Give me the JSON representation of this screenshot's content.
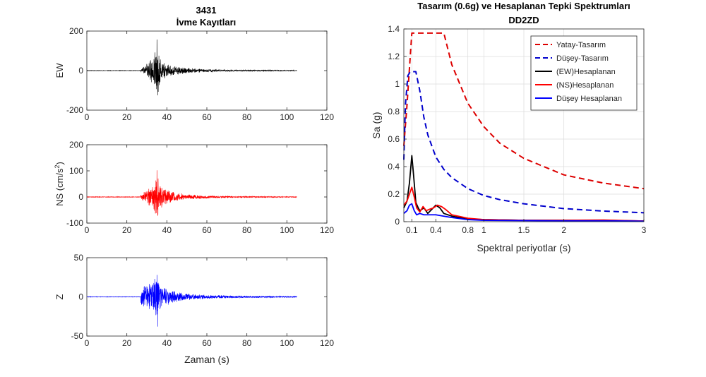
{
  "figure": {
    "left_title_line1": "3431",
    "left_title_line2": "İvme Kayıtları",
    "right_title_line1": "Tasarım (0.6g) ve Hesaplanan Tepki Spektrumları",
    "right_title_line2": "DD2ZD"
  },
  "chart_data": [
    {
      "id": "ew",
      "type": "line",
      "ylabel": "EW",
      "color": "#000000",
      "xlim": [
        0,
        120
      ],
      "ylim": [
        -200,
        200
      ],
      "xticks": [
        0,
        20,
        40,
        60,
        80,
        100,
        120
      ],
      "yticks": [
        -200,
        0,
        200
      ],
      "record_range": [
        0,
        105
      ],
      "strong_motion_start": 27,
      "peak_time": 35,
      "peak_positive": 157,
      "peak_negative": -125,
      "envelope": [
        [
          27,
          12
        ],
        [
          30,
          35
        ],
        [
          33,
          75
        ],
        [
          35,
          150
        ],
        [
          37,
          60
        ],
        [
          40,
          38
        ],
        [
          45,
          22
        ],
        [
          55,
          10
        ],
        [
          70,
          5
        ],
        [
          105,
          2
        ]
      ]
    },
    {
      "id": "ns",
      "type": "line",
      "ylabel": "NS (cm/s²)",
      "color": "#ff0000",
      "xlim": [
        0,
        120
      ],
      "ylim": [
        -100,
        200
      ],
      "xticks": [
        0,
        20,
        40,
        60,
        80,
        100,
        120
      ],
      "yticks": [
        -100,
        0,
        100,
        200
      ],
      "record_range": [
        0,
        105
      ],
      "strong_motion_start": 27,
      "peak_time": 35,
      "peak_positive": 102,
      "peak_negative": -72,
      "envelope": [
        [
          27,
          12
        ],
        [
          30,
          28
        ],
        [
          33,
          55
        ],
        [
          35,
          100
        ],
        [
          37,
          45
        ],
        [
          40,
          30
        ],
        [
          45,
          18
        ],
        [
          55,
          8
        ],
        [
          70,
          4
        ],
        [
          105,
          1.5
        ]
      ]
    },
    {
      "id": "z",
      "type": "line",
      "ylabel": "Z",
      "xlabel": "Zaman (s)",
      "color": "#0000ff",
      "xlim": [
        0,
        120
      ],
      "ylim": [
        -50,
        50
      ],
      "xticks": [
        0,
        20,
        40,
        60,
        80,
        100,
        120
      ],
      "yticks": [
        -50,
        0,
        50
      ],
      "record_range": [
        0,
        105
      ],
      "strong_motion_start": 27,
      "peak_time": 35,
      "peak_positive": 28,
      "peak_negative": -38,
      "envelope": [
        [
          27,
          14
        ],
        [
          30,
          18
        ],
        [
          33,
          20
        ],
        [
          35,
          30
        ],
        [
          37,
          16
        ],
        [
          40,
          12
        ],
        [
          45,
          7
        ],
        [
          55,
          3.5
        ],
        [
          70,
          2
        ],
        [
          105,
          0.8
        ]
      ]
    },
    {
      "id": "spectrum",
      "type": "line",
      "xlabel": "Spektral periyotlar (s)",
      "ylabel": "Sa (g)",
      "xlim": [
        0,
        3
      ],
      "ylim": [
        0,
        1.4
      ],
      "xticks": [
        0.1,
        0.4,
        0.8,
        1,
        1.5,
        2,
        3
      ],
      "xtick_labels": [
        "0.1",
        "0.4",
        "0.8",
        "1",
        "1.5",
        "2",
        "3"
      ],
      "yticks": [
        0,
        0.2,
        0.4,
        0.6,
        0.8,
        1,
        1.2,
        1.4
      ],
      "ytick_labels": [
        "0",
        "0.2",
        "0.4",
        "0.6",
        "0.8",
        "1",
        "1.2",
        "1.4"
      ],
      "legend_position": "top-right",
      "series": [
        {
          "name": "Yatay-Tasarım",
          "color": "#dd0000",
          "dashed": true,
          "x": [
            0,
            0.04,
            0.08,
            0.1,
            0.2,
            0.35,
            0.5,
            0.6,
            0.8,
            1.0,
            1.2,
            1.5,
            2.0,
            2.5,
            3.0
          ],
          "y": [
            0.55,
            0.85,
            1.2,
            1.37,
            1.37,
            1.37,
            1.37,
            1.14,
            0.86,
            0.69,
            0.57,
            0.46,
            0.34,
            0.28,
            0.24
          ]
        },
        {
          "name": "Düşey-Tasarım",
          "color": "#0000cc",
          "dashed": true,
          "x": [
            0,
            0.02,
            0.05,
            0.08,
            0.1,
            0.15,
            0.2,
            0.25,
            0.3,
            0.4,
            0.5,
            0.6,
            0.8,
            1.0,
            1.2,
            1.5,
            2.0,
            2.5,
            3.0
          ],
          "y": [
            0.45,
            0.85,
            1.06,
            1.09,
            1.09,
            1.09,
            0.95,
            0.76,
            0.63,
            0.47,
            0.38,
            0.32,
            0.24,
            0.19,
            0.16,
            0.13,
            0.095,
            0.077,
            0.065
          ]
        },
        {
          "name": "(EW)Hesaplanan",
          "color": "#000000",
          "dashed": false,
          "x": [
            0,
            0.04,
            0.07,
            0.1,
            0.12,
            0.15,
            0.18,
            0.2,
            0.25,
            0.3,
            0.35,
            0.4,
            0.45,
            0.5,
            0.6,
            0.8,
            1.0,
            1.5,
            2.0,
            2.5,
            3.0
          ],
          "y": [
            0.1,
            0.15,
            0.28,
            0.48,
            0.35,
            0.14,
            0.1,
            0.08,
            0.1,
            0.06,
            0.09,
            0.12,
            0.1,
            0.06,
            0.04,
            0.02,
            0.015,
            0.01,
            0.01,
            0.01,
            0.005
          ]
        },
        {
          "name": "(NS)Hesaplanan",
          "color": "#ff0000",
          "dashed": false,
          "x": [
            0,
            0.04,
            0.07,
            0.1,
            0.13,
            0.16,
            0.2,
            0.24,
            0.28,
            0.32,
            0.37,
            0.42,
            0.47,
            0.52,
            0.6,
            0.8,
            1.0,
            1.5,
            2.0,
            2.5,
            3.0
          ],
          "y": [
            0.12,
            0.15,
            0.2,
            0.25,
            0.18,
            0.1,
            0.07,
            0.11,
            0.08,
            0.09,
            0.1,
            0.12,
            0.11,
            0.09,
            0.05,
            0.025,
            0.015,
            0.01,
            0.01,
            0.012,
            0.005
          ]
        },
        {
          "name": "Düşey Hesaplanan",
          "color": "#0000ff",
          "dashed": false,
          "x": [
            0,
            0.04,
            0.07,
            0.1,
            0.13,
            0.16,
            0.2,
            0.25,
            0.3,
            0.4,
            0.5,
            0.6,
            0.8,
            1.0,
            1.5,
            2.0,
            2.5,
            3.0
          ],
          "y": [
            0.06,
            0.08,
            0.12,
            0.13,
            0.08,
            0.05,
            0.06,
            0.05,
            0.05,
            0.05,
            0.04,
            0.03,
            0.015,
            0.01,
            0.008,
            0.006,
            0.006,
            0.004
          ]
        }
      ]
    }
  ]
}
